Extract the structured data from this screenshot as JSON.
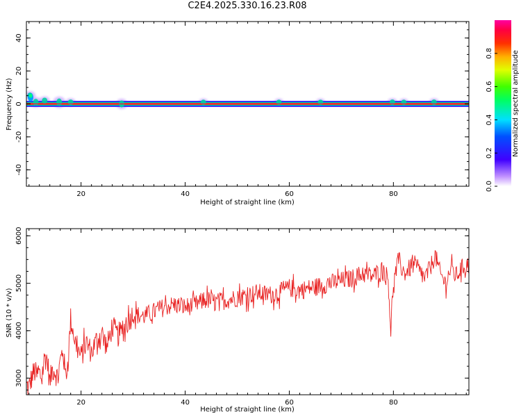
{
  "title": "C2E4.2025.330.16.23.R08",
  "chart_data": [
    {
      "type": "heatmap",
      "xlabel": "Height of straight line (km)",
      "ylabel": "Frequency (Hz)",
      "xlim": [
        9.5,
        94.5
      ],
      "ylim": [
        -50,
        50
      ],
      "xticks": [
        20,
        40,
        60,
        80
      ],
      "yticks": [
        -40,
        -20,
        0,
        20,
        40
      ],
      "xtick_labels": [
        "20",
        "40",
        "60",
        "80"
      ],
      "ytick_labels": [
        "-40",
        "-20",
        "0",
        "20",
        "40"
      ],
      "grid": false,
      "ridge_frequency": 0,
      "colorbar": {
        "label": "Normalized spectral amplitude",
        "range": [
          0,
          1
        ],
        "ticks": [
          "0.0",
          "0.2",
          "0.4",
          "0.6",
          "0.8"
        ],
        "tick_values": [
          0.0,
          0.2,
          0.4,
          0.6,
          0.8
        ],
        "colormap": "rainbow (white-violet-blue-cyan-green-yellow-orange-red-magenta)"
      },
      "features": [
        {
          "x": 10.2,
          "freq": 5,
          "amplitude": 0.3
        },
        {
          "x": 11.3,
          "freq": 1,
          "amplitude": 0.4
        },
        {
          "x": 13.0,
          "freq": 2,
          "amplitude": 0.25
        },
        {
          "x": 15.8,
          "freq": 1,
          "amplitude": 0.5
        },
        {
          "x": 18.0,
          "freq": 1,
          "amplitude": 0.2
        },
        {
          "x": 27.8,
          "freq": 0,
          "amplitude": 0.4
        },
        {
          "x": 43.5,
          "freq": 1,
          "amplitude": 0.15
        },
        {
          "x": 58.0,
          "freq": 1,
          "amplitude": 0.15
        },
        {
          "x": 66.0,
          "freq": 1,
          "amplitude": 0.15
        },
        {
          "x": 79.8,
          "freq": 1,
          "amplitude": 0.2
        },
        {
          "x": 82.0,
          "freq": 1,
          "amplitude": 0.15
        },
        {
          "x": 87.8,
          "freq": 1,
          "amplitude": 0.2
        }
      ]
    },
    {
      "type": "line",
      "xlabel": "Height of straight line (km)",
      "ylabel": "SNR (10 * v/v)",
      "xlim": [
        9.5,
        94.5
      ],
      "ylim": [
        2650,
        6150
      ],
      "xticks": [
        20,
        40,
        60,
        80
      ],
      "yticks": [
        3000,
        4000,
        5000,
        6000
      ],
      "xtick_labels": [
        "20",
        "40",
        "60",
        "80"
      ],
      "ytick_labels": [
        "3000",
        "4000",
        "5000",
        "6000"
      ],
      "grid": false,
      "color": "#e82020",
      "series": [
        {
          "x": [
            9.5,
            10,
            10.5,
            11,
            11.5,
            12,
            12.5,
            13,
            13.5,
            14,
            14.5,
            15,
            15.5,
            16,
            16.5,
            17,
            17.5,
            18,
            19,
            20,
            21,
            22,
            23,
            24,
            25,
            26,
            27,
            28,
            29,
            30,
            32,
            34,
            36,
            38,
            40,
            42,
            44,
            46,
            48,
            50,
            52,
            54,
            56,
            58,
            60,
            62,
            64,
            66,
            68,
            70,
            72,
            74,
            76,
            78,
            79,
            79.5,
            80,
            81,
            82,
            83,
            84,
            85,
            86,
            87,
            88,
            89,
            90,
            91,
            92,
            93,
            94,
            94.5
          ],
          "values": [
            2850,
            2800,
            3000,
            3150,
            3050,
            3100,
            3000,
            3450,
            3400,
            2900,
            3200,
            3150,
            3000,
            3350,
            3600,
            3050,
            3350,
            4250,
            3700,
            3450,
            3750,
            3550,
            3800,
            3950,
            3650,
            4100,
            3900,
            4000,
            4200,
            4350,
            4300,
            4400,
            4500,
            4550,
            4500,
            4550,
            4650,
            4600,
            4650,
            4700,
            4750,
            4800,
            4750,
            4800,
            4900,
            4850,
            4900,
            4950,
            5000,
            5050,
            5100,
            5200,
            5150,
            5300,
            5100,
            4000,
            5000,
            5500,
            5200,
            5300,
            5400,
            5250,
            5100,
            5300,
            5600,
            5200,
            5000,
            5300,
            5150,
            5300,
            5400,
            5350
          ]
        }
      ]
    }
  ]
}
